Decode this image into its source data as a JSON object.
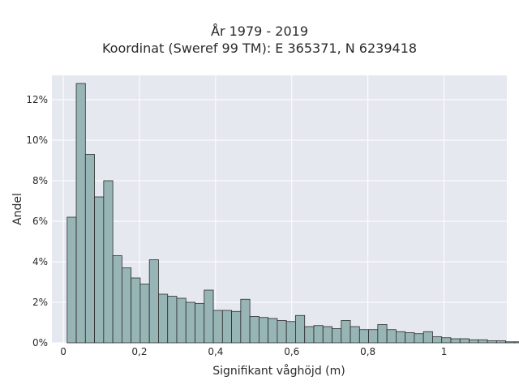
{
  "chart_data": {
    "type": "bar",
    "title_lines": [
      "År 1979 - 2019",
      "Koordinat (Sweref 99 TM): E 365371, N 6239418"
    ],
    "xlabel": "Signifikant våghöjd (m)",
    "ylabel": "Andel",
    "xlim": [
      -0.03,
      1.165
    ],
    "ylim": [
      0,
      13.2
    ],
    "x_ticks": [
      0,
      0.2,
      0.4,
      0.6,
      0.8,
      1.0
    ],
    "x_tick_labels": [
      "0",
      "0,2",
      "0,4",
      "0,6",
      "0,8",
      "1"
    ],
    "y_ticks": [
      0,
      2,
      4,
      6,
      8,
      10,
      12
    ],
    "y_tick_labels": [
      "0%",
      "2%",
      "4%",
      "6%",
      "8%",
      "10%",
      "12%"
    ],
    "bin_start": 0.01,
    "bin_width": 0.024,
    "values": [
      6.2,
      12.8,
      9.3,
      7.2,
      8.0,
      4.3,
      3.7,
      3.2,
      2.9,
      4.1,
      2.4,
      2.3,
      2.2,
      2.0,
      1.95,
      2.6,
      1.6,
      1.6,
      1.55,
      2.15,
      1.3,
      1.25,
      1.2,
      1.1,
      1.05,
      1.35,
      0.8,
      0.85,
      0.8,
      0.7,
      1.1,
      0.8,
      0.65,
      0.65,
      0.9,
      0.65,
      0.55,
      0.5,
      0.45,
      0.55,
      0.3,
      0.25,
      0.2,
      0.2,
      0.15,
      0.15,
      0.1,
      0.1,
      0.05,
      0.05
    ],
    "grid": true,
    "colors": {
      "bar_fill": "#98b5b5",
      "bar_edge": "#2b2b2b",
      "plot_background": "#e6e8f0",
      "grid": "#ffffff"
    }
  }
}
